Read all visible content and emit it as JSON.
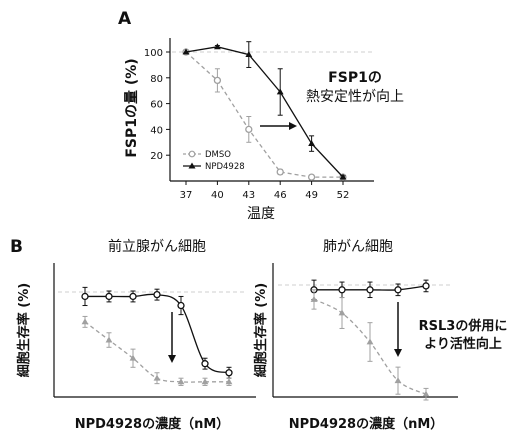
{
  "panel_a_label": "A",
  "panel_b_label": "B",
  "colors": {
    "dmso": "#a0a0a0",
    "npd": "#111111",
    "ref": "#cfcfcf"
  },
  "chart_data": [
    {
      "id": "A",
      "type": "line",
      "xlabel": "温度",
      "ylabel": "FSP1の量 (%)",
      "categories": [
        "37",
        "40",
        "43",
        "46",
        "49",
        "52"
      ],
      "yticks": [
        "20",
        "40",
        "60",
        "80",
        "100"
      ],
      "ylim": [
        0,
        110
      ],
      "legend_position": "bottom-left",
      "annotation": [
        "FSP1の",
        "熱安定性が向上"
      ],
      "series": [
        {
          "name": "DMSO",
          "style": "dashed-open-circle",
          "values": [
            100,
            78,
            40,
            7,
            3,
            3
          ],
          "error": [
            0,
            9,
            10,
            2,
            1,
            1
          ]
        },
        {
          "name": "NPD4928",
          "style": "solid-filled-triangle",
          "values": [
            100,
            104,
            98,
            69,
            29,
            3
          ],
          "error": [
            0,
            1,
            10,
            18,
            6,
            1
          ]
        }
      ]
    },
    {
      "id": "B-left",
      "type": "line",
      "title": "前立腺がん細胞",
      "xlabel": "NPD4928の濃度（nM）",
      "ylabel": "細胞生存率 (%)",
      "series": [
        {
          "style": "solid-open-circle",
          "points": [
            [
              0,
              97
            ],
            [
              1,
              97
            ],
            [
              2,
              97
            ],
            [
              3,
              98
            ],
            [
              4,
              92
            ],
            [
              5,
              60
            ],
            [
              6,
              55
            ]
          ],
          "error": [
            5,
            3,
            3,
            3,
            5,
            3,
            3
          ]
        },
        {
          "style": "dashed-filled-triangle",
          "points": [
            [
              0,
              83
            ],
            [
              1,
              73
            ],
            [
              2,
              63
            ],
            [
              3,
              52
            ],
            [
              4,
              50
            ],
            [
              5,
              50
            ],
            [
              6,
              50
            ]
          ],
          "error": [
            3,
            4,
            5,
            3,
            2,
            2,
            2
          ]
        }
      ]
    },
    {
      "id": "B-right",
      "type": "line",
      "title": "肺がん細胞",
      "xlabel": "NPD4928の濃度（nM）",
      "ylabel": "細胞生存率 (%)",
      "annotation": [
        "RSL3の併用に",
        "より活性向上"
      ],
      "series": [
        {
          "style": "solid-open-circle",
          "points": [
            [
              0,
              97
            ],
            [
              1,
              97
            ],
            [
              2,
              97
            ],
            [
              3,
              97
            ],
            [
              4,
              99
            ]
          ],
          "error": [
            5,
            4,
            4,
            3,
            3
          ]
        },
        {
          "style": "dashed-filled-triangle",
          "points": [
            [
              0,
              92
            ],
            [
              1,
              85
            ],
            [
              2,
              70
            ],
            [
              3,
              50
            ],
            [
              4,
              43
            ]
          ],
          "error": [
            5,
            8,
            10,
            7,
            3
          ]
        }
      ]
    }
  ]
}
